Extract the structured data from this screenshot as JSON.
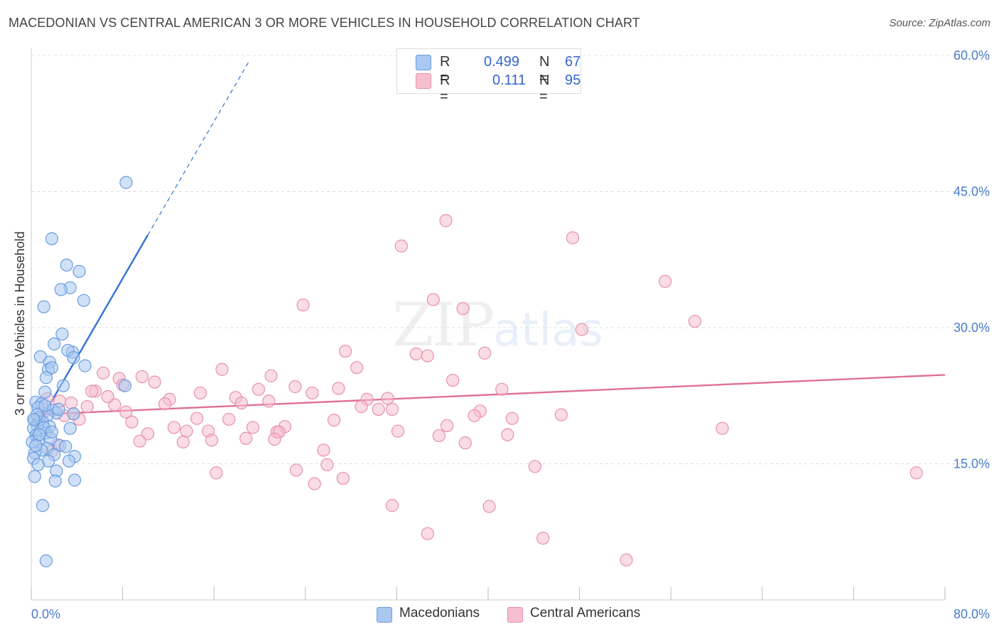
{
  "title": "MACEDONIAN VS CENTRAL AMERICAN 3 OR MORE VEHICLES IN HOUSEHOLD CORRELATION CHART",
  "source": "Source: ZipAtlas.com",
  "watermark": {
    "zip": "ZIP",
    "atlas": "atlas"
  },
  "legend": {
    "series": [
      {
        "r_label": "R =",
        "r_value": "0.499",
        "n_label": "N =",
        "n_value": "67"
      },
      {
        "r_label": "R =",
        "r_value": "0.111",
        "n_label": "N =",
        "n_value": "95"
      }
    ]
  },
  "colors": {
    "macedonians_fill": "#aac8f0",
    "macedonians_stroke": "#6a9de0",
    "macedonians_line": "#3372d4",
    "central_fill": "#f6bfd0",
    "central_stroke": "#e890ac",
    "central_line": "#e0709a",
    "tick_label": "#4a7bc8"
  },
  "chart_data": {
    "type": "scatter",
    "title": "MACEDONIAN VS CENTRAL AMERICAN 3 OR MORE VEHICLES IN HOUSEHOLD CORRELATION CHART",
    "xlabel": "",
    "ylabel": "3 or more Vehicles in Household",
    "xlim": [
      0,
      80
    ],
    "ylim": [
      0,
      60
    ],
    "x_tick_labels": [
      "0.0%",
      "80.0%"
    ],
    "y_ticks": [
      15,
      30,
      45,
      60
    ],
    "y_tick_labels": [
      "15.0%",
      "30.0%",
      "45.0%",
      "60.0%"
    ],
    "grid": true,
    "legend_position": "top-center",
    "series": [
      {
        "name": "Macedonians",
        "trend": {
          "x0": 0,
          "y0": 18.0,
          "x1": 10.2,
          "y1": 40.2,
          "dash_x1": 19.0,
          "dash_y1": 59.2
        },
        "points": [
          [
            8.3,
            46.0
          ],
          [
            1.8,
            39.8
          ],
          [
            3.1,
            36.9
          ],
          [
            4.2,
            36.2
          ],
          [
            3.4,
            34.4
          ],
          [
            2.6,
            34.2
          ],
          [
            4.6,
            33.0
          ],
          [
            1.1,
            32.3
          ],
          [
            2.7,
            29.3
          ],
          [
            3.6,
            27.3
          ],
          [
            3.2,
            27.5
          ],
          [
            0.8,
            26.8
          ],
          [
            3.7,
            26.7
          ],
          [
            1.6,
            26.2
          ],
          [
            2.0,
            28.2
          ],
          [
            4.7,
            25.8
          ],
          [
            1.5,
            25.4
          ],
          [
            1.8,
            25.6
          ],
          [
            1.3,
            24.5
          ],
          [
            8.2,
            23.6
          ],
          [
            2.8,
            23.6
          ],
          [
            1.2,
            22.9
          ],
          [
            0.4,
            21.8
          ],
          [
            0.9,
            21.6
          ],
          [
            0.6,
            21.2
          ],
          [
            1.9,
            20.9
          ],
          [
            2.2,
            20.6
          ],
          [
            1.4,
            20.3
          ],
          [
            0.7,
            20.1
          ],
          [
            0.3,
            19.8
          ],
          [
            1.0,
            19.6
          ],
          [
            0.5,
            19.3
          ],
          [
            1.6,
            19.1
          ],
          [
            0.2,
            18.9
          ],
          [
            0.8,
            18.6
          ],
          [
            1.3,
            18.4
          ],
          [
            3.7,
            20.5
          ],
          [
            3.4,
            18.9
          ],
          [
            0.4,
            18.1
          ],
          [
            1.7,
            17.8
          ],
          [
            0.6,
            17.5
          ],
          [
            0.1,
            17.4
          ],
          [
            2.5,
            17.0
          ],
          [
            3.0,
            16.9
          ],
          [
            1.4,
            16.7
          ],
          [
            0.9,
            16.5
          ],
          [
            0.3,
            16.2
          ],
          [
            2.0,
            16.0
          ],
          [
            3.8,
            15.8
          ],
          [
            0.2,
            15.6
          ],
          [
            1.5,
            15.3
          ],
          [
            3.3,
            15.3
          ],
          [
            0.6,
            14.9
          ],
          [
            2.2,
            14.2
          ],
          [
            0.3,
            13.6
          ],
          [
            2.1,
            13.1
          ],
          [
            3.8,
            13.2
          ],
          [
            1.0,
            10.4
          ],
          [
            1.3,
            4.3
          ],
          [
            0.5,
            20.4
          ],
          [
            2.4,
            21.0
          ],
          [
            0.2,
            19.9
          ],
          [
            1.1,
            19.0
          ],
          [
            0.7,
            18.2
          ],
          [
            1.8,
            18.5
          ],
          [
            0.4,
            17.0
          ],
          [
            1.2,
            21.4
          ]
        ]
      },
      {
        "name": "Central Americans",
        "trend": {
          "x0": 0,
          "y0": 20.4,
          "x1": 80,
          "y1": 24.8
        },
        "points": [
          [
            43.5,
            58.0
          ],
          [
            36.3,
            41.8
          ],
          [
            47.4,
            39.9
          ],
          [
            32.4,
            39.0
          ],
          [
            55.5,
            35.1
          ],
          [
            58.1,
            30.7
          ],
          [
            23.8,
            32.5
          ],
          [
            35.2,
            33.1
          ],
          [
            37.8,
            32.1
          ],
          [
            48.2,
            29.8
          ],
          [
            27.5,
            27.4
          ],
          [
            33.7,
            27.1
          ],
          [
            34.7,
            26.9
          ],
          [
            39.7,
            27.2
          ],
          [
            28.5,
            25.6
          ],
          [
            16.7,
            25.4
          ],
          [
            21.0,
            24.7
          ],
          [
            6.3,
            25.0
          ],
          [
            9.7,
            24.6
          ],
          [
            10.8,
            24.0
          ],
          [
            7.7,
            24.4
          ],
          [
            8.0,
            23.7
          ],
          [
            23.1,
            23.5
          ],
          [
            36.9,
            24.2
          ],
          [
            26.9,
            23.3
          ],
          [
            19.9,
            23.2
          ],
          [
            41.2,
            23.2
          ],
          [
            14.8,
            22.8
          ],
          [
            24.6,
            22.8
          ],
          [
            5.6,
            23.0
          ],
          [
            5.3,
            23.0
          ],
          [
            17.9,
            22.3
          ],
          [
            12.1,
            22.1
          ],
          [
            29.4,
            22.1
          ],
          [
            31.2,
            22.2
          ],
          [
            18.4,
            21.7
          ],
          [
            20.8,
            21.9
          ],
          [
            2.5,
            21.9
          ],
          [
            3.5,
            21.7
          ],
          [
            1.4,
            22.2
          ],
          [
            4.9,
            21.3
          ],
          [
            7.3,
            21.5
          ],
          [
            11.7,
            21.6
          ],
          [
            28.9,
            21.3
          ],
          [
            30.4,
            21.0
          ],
          [
            31.6,
            21.0
          ],
          [
            8.3,
            20.7
          ],
          [
            3.7,
            20.5
          ],
          [
            2.9,
            20.3
          ],
          [
            1.0,
            20.6
          ],
          [
            39.3,
            20.8
          ],
          [
            38.8,
            20.3
          ],
          [
            46.4,
            20.4
          ],
          [
            14.5,
            20.0
          ],
          [
            17.3,
            19.9
          ],
          [
            26.5,
            19.8
          ],
          [
            42.1,
            20.0
          ],
          [
            8.8,
            19.6
          ],
          [
            12.5,
            19.0
          ],
          [
            19.4,
            19.0
          ],
          [
            22.2,
            19.1
          ],
          [
            36.4,
            19.2
          ],
          [
            13.6,
            18.6
          ],
          [
            15.5,
            18.6
          ],
          [
            21.5,
            18.5
          ],
          [
            21.7,
            18.5
          ],
          [
            32.1,
            18.6
          ],
          [
            60.5,
            18.9
          ],
          [
            10.2,
            18.3
          ],
          [
            35.7,
            18.1
          ],
          [
            41.7,
            18.2
          ],
          [
            18.8,
            17.8
          ],
          [
            9.5,
            17.5
          ],
          [
            13.3,
            17.4
          ],
          [
            15.8,
            17.6
          ],
          [
            21.3,
            17.7
          ],
          [
            38.0,
            17.3
          ],
          [
            2.3,
            17.1
          ],
          [
            25.6,
            16.5
          ],
          [
            25.9,
            14.9
          ],
          [
            23.2,
            14.3
          ],
          [
            16.2,
            14.0
          ],
          [
            27.3,
            13.4
          ],
          [
            44.1,
            14.7
          ],
          [
            77.5,
            14.0
          ],
          [
            24.8,
            12.8
          ],
          [
            31.6,
            10.4
          ],
          [
            40.1,
            10.3
          ],
          [
            34.7,
            7.3
          ],
          [
            44.8,
            6.8
          ],
          [
            52.1,
            4.4
          ],
          [
            1.8,
            16.4
          ],
          [
            0.6,
            19.6
          ],
          [
            4.2,
            19.9
          ],
          [
            6.7,
            22.4
          ]
        ]
      }
    ]
  },
  "axis": {
    "ylabel": "3 or more Vehicles in Household",
    "x_left_label": "0.0%",
    "x_right_label": "80.0%"
  },
  "bottom_legend": {
    "macedonians": "Macedonians",
    "central": "Central Americans"
  }
}
